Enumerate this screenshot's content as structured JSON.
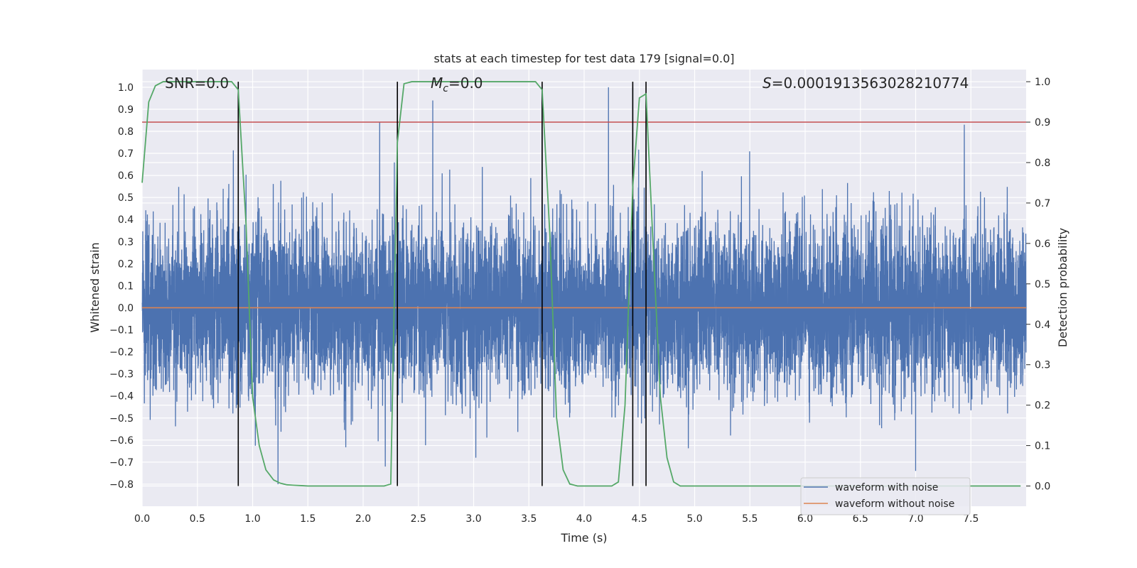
{
  "chart_data": {
    "type": "line",
    "title": "stats at each timestep for test data 179 [signal=0.0]",
    "xlabel": "Time (s)",
    "ylabel_left": "Whitened strain",
    "ylabel_right": "Detection probability",
    "xlim": [
      0.0,
      8.0
    ],
    "ylim_left": [
      -0.9,
      1.08
    ],
    "ylim_right": [
      -0.05,
      1.03
    ],
    "x_ticks": [
      "0.0",
      "0.5",
      "1.0",
      "1.5",
      "2.0",
      "2.5",
      "3.0",
      "3.5",
      "4.0",
      "4.5",
      "5.0",
      "5.5",
      "6.0",
      "6.5",
      "7.0",
      "7.5"
    ],
    "y_left_ticks": [
      "-0.8",
      "-0.7",
      "-0.6",
      "-0.5",
      "-0.4",
      "-0.3",
      "-0.2",
      "-0.1",
      "0.0",
      "0.1",
      "0.2",
      "0.3",
      "0.4",
      "0.5",
      "0.6",
      "0.7",
      "0.8",
      "0.9",
      "1.0"
    ],
    "y_right_ticks": [
      "0.0",
      "0.1",
      "0.2",
      "0.3",
      "0.4",
      "0.5",
      "0.6",
      "0.7",
      "0.8",
      "0.9",
      "1.0"
    ],
    "grid": true,
    "annotations": {
      "snr": "SNR=0.0",
      "mc_symbol": "M",
      "mc_sub": "c",
      "mc_value": "=0.0",
      "s_symbol": "S",
      "s_value": "=0.0001913563028210774"
    },
    "threshold": {
      "y_right": 0.9,
      "color": "#c44e52"
    },
    "boundaries_x": [
      0.87,
      2.31,
      3.62,
      4.44,
      4.56
    ],
    "noise": {
      "name": "waveform with noise",
      "color": "#4c72b0",
      "n_samples": 8192,
      "envelope_typical": 0.3,
      "peak_points": [
        {
          "x": 0.87,
          "y": 0.97
        },
        {
          "x": 2.15,
          "y": 0.84
        },
        {
          "x": 2.63,
          "y": 0.94
        },
        {
          "x": 3.62,
          "y": 0.97
        },
        {
          "x": 4.22,
          "y": 1.0
        },
        {
          "x": 4.44,
          "y": 1.0
        },
        {
          "x": 4.56,
          "y": 0.95
        },
        {
          "x": 7.44,
          "y": 0.83
        },
        {
          "x": 1.23,
          "y": -0.8
        },
        {
          "x": 7.0,
          "y": -0.74
        },
        {
          "x": 2.2,
          "y": -0.72
        },
        {
          "x": 3.02,
          "y": -0.68
        }
      ]
    },
    "clean": {
      "name": "waveform without noise",
      "color": "#dd8452",
      "y": 0.0
    },
    "probability": {
      "color": "#55a868",
      "x": [
        0.0,
        0.06,
        0.12,
        0.19,
        0.25,
        0.31,
        0.37,
        0.44,
        0.5,
        0.56,
        0.62,
        0.69,
        0.75,
        0.81,
        0.87,
        0.94,
        1.0,
        1.06,
        1.12,
        1.19,
        1.25,
        1.31,
        1.37,
        1.44,
        1.5,
        1.56,
        1.62,
        1.69,
        1.75,
        1.81,
        1.87,
        1.94,
        2.0,
        2.06,
        2.12,
        2.19,
        2.25,
        2.31,
        2.37,
        2.44,
        2.5,
        2.56,
        2.62,
        2.69,
        2.75,
        2.81,
        2.87,
        2.94,
        3.0,
        3.06,
        3.12,
        3.19,
        3.25,
        3.31,
        3.37,
        3.44,
        3.5,
        3.56,
        3.62,
        3.69,
        3.75,
        3.81,
        3.87,
        3.94,
        4.0,
        4.06,
        4.12,
        4.19,
        4.25,
        4.31,
        4.37,
        4.44,
        4.5,
        4.56,
        4.62,
        4.69,
        4.75,
        4.81,
        4.87,
        4.94,
        5.0,
        5.5,
        6.0,
        6.5,
        7.0,
        7.5,
        7.95
      ],
      "y": [
        0.75,
        0.95,
        0.99,
        1.0,
        1.0,
        1.0,
        1.0,
        1.0,
        1.0,
        1.0,
        1.0,
        1.0,
        1.0,
        1.0,
        0.98,
        0.65,
        0.22,
        0.1,
        0.04,
        0.015,
        0.007,
        0.003,
        0.002,
        0.001,
        0.0,
        0.0,
        0.0,
        0.0,
        0.0,
        0.0,
        0.0,
        0.0,
        0.0,
        0.0,
        0.0,
        0.0,
        0.005,
        0.85,
        0.995,
        1.0,
        1.0,
        1.0,
        1.0,
        1.0,
        1.0,
        1.0,
        1.0,
        1.0,
        1.0,
        1.0,
        1.0,
        1.0,
        1.0,
        1.0,
        1.0,
        1.0,
        1.0,
        1.0,
        0.98,
        0.62,
        0.17,
        0.04,
        0.005,
        0.0,
        0.0,
        0.0,
        0.0,
        0.0,
        0.0,
        0.01,
        0.2,
        0.74,
        0.96,
        0.97,
        0.62,
        0.22,
        0.07,
        0.01,
        0.0,
        0.0,
        0.0,
        0.0,
        0.0,
        0.0,
        0.0,
        0.0,
        0.0
      ]
    },
    "legend": {
      "placement": "lower-right",
      "entries": [
        "waveform with noise",
        "waveform without noise"
      ]
    }
  }
}
